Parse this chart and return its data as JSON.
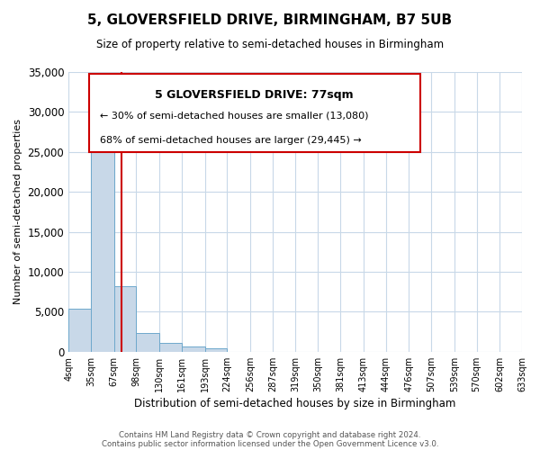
{
  "title": "5, GLOVERSFIELD DRIVE, BIRMINGHAM, B7 5UB",
  "subtitle": "Size of property relative to semi-detached houses in Birmingham",
  "xlabel": "Distribution of semi-detached houses by size in Birmingham",
  "ylabel": "Number of semi-detached properties",
  "footnote1": "Contains HM Land Registry data © Crown copyright and database right 2024.",
  "footnote2": "Contains public sector information licensed under the Open Government Licence v3.0.",
  "property_label": "5 GLOVERSFIELD DRIVE: 77sqm",
  "annotation_smaller": "← 30% of semi-detached houses are smaller (13,080)",
  "annotation_larger": "68% of semi-detached houses are larger (29,445) →",
  "property_size": 77,
  "bar_edges": [
    4,
    35,
    67,
    98,
    130,
    161,
    193,
    224,
    256,
    287,
    319,
    350,
    381,
    413,
    444,
    476,
    507,
    539,
    570,
    602,
    633
  ],
  "bar_heights": [
    5400,
    26200,
    8200,
    2400,
    1100,
    600,
    400,
    0,
    0,
    0,
    0,
    0,
    0,
    0,
    0,
    0,
    0,
    0,
    0,
    0
  ],
  "bar_color": "#c8d8e8",
  "bar_edgecolor": "#6ea8cc",
  "vline_color": "#cc0000",
  "vline_x": 77,
  "ylim": [
    0,
    35000
  ],
  "yticks": [
    0,
    5000,
    10000,
    15000,
    20000,
    25000,
    30000,
    35000
  ],
  "background_color": "#ffffff",
  "grid_color": "#c8d8e8",
  "box_edgecolor": "#cc0000",
  "annotation_box_bg": "#ffffff",
  "figsize": [
    6.0,
    5.0
  ],
  "dpi": 100
}
